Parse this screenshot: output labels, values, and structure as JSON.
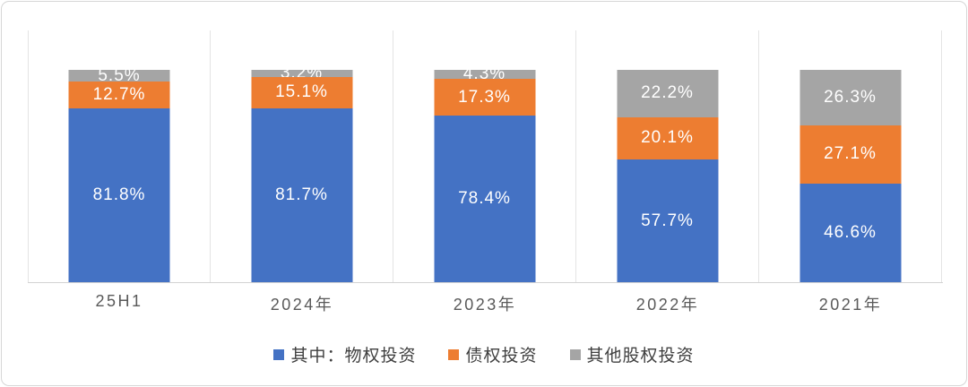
{
  "chart_data": {
    "type": "bar",
    "variant": "stacked-100-percent",
    "orientation": "vertical",
    "title": "",
    "xlabel": "",
    "ylabel": "",
    "categories": [
      "25H1",
      "2024年",
      "2023年",
      "2022年",
      "2021年"
    ],
    "series": [
      {
        "name": "其中：物权投资",
        "color": "#4472C4",
        "values": [
          81.8,
          81.7,
          78.4,
          57.7,
          46.6
        ]
      },
      {
        "name": "债权投资",
        "color": "#ED7D31",
        "values": [
          12.7,
          15.1,
          17.3,
          20.1,
          27.1
        ]
      },
      {
        "name": "其他股权投资",
        "color": "#A5A5A5",
        "values": [
          5.5,
          3.2,
          4.3,
          22.2,
          26.3
        ]
      }
    ],
    "data_labels": [
      [
        "81.8%",
        "81.7%",
        "78.4%",
        "57.7%",
        "46.6%"
      ],
      [
        "12.7%",
        "15.1%",
        "17.3%",
        "20.1%",
        "27.1%"
      ],
      [
        "5.5%",
        "3.2%",
        "4.3%",
        "22.2%",
        "26.3%"
      ]
    ],
    "data_label_color": "#FFFFFF",
    "ylim": [
      0,
      120
    ],
    "grid": "vertical category separators only",
    "gridline_color": "#E4E4E4",
    "axis_line_color": "#D2D2D2",
    "category_label_color": "#595959",
    "legend_position": "bottom",
    "legend_text_color": "#404040",
    "card_border_color": "#D6D6D6",
    "background_color": "#FFFFFF"
  }
}
